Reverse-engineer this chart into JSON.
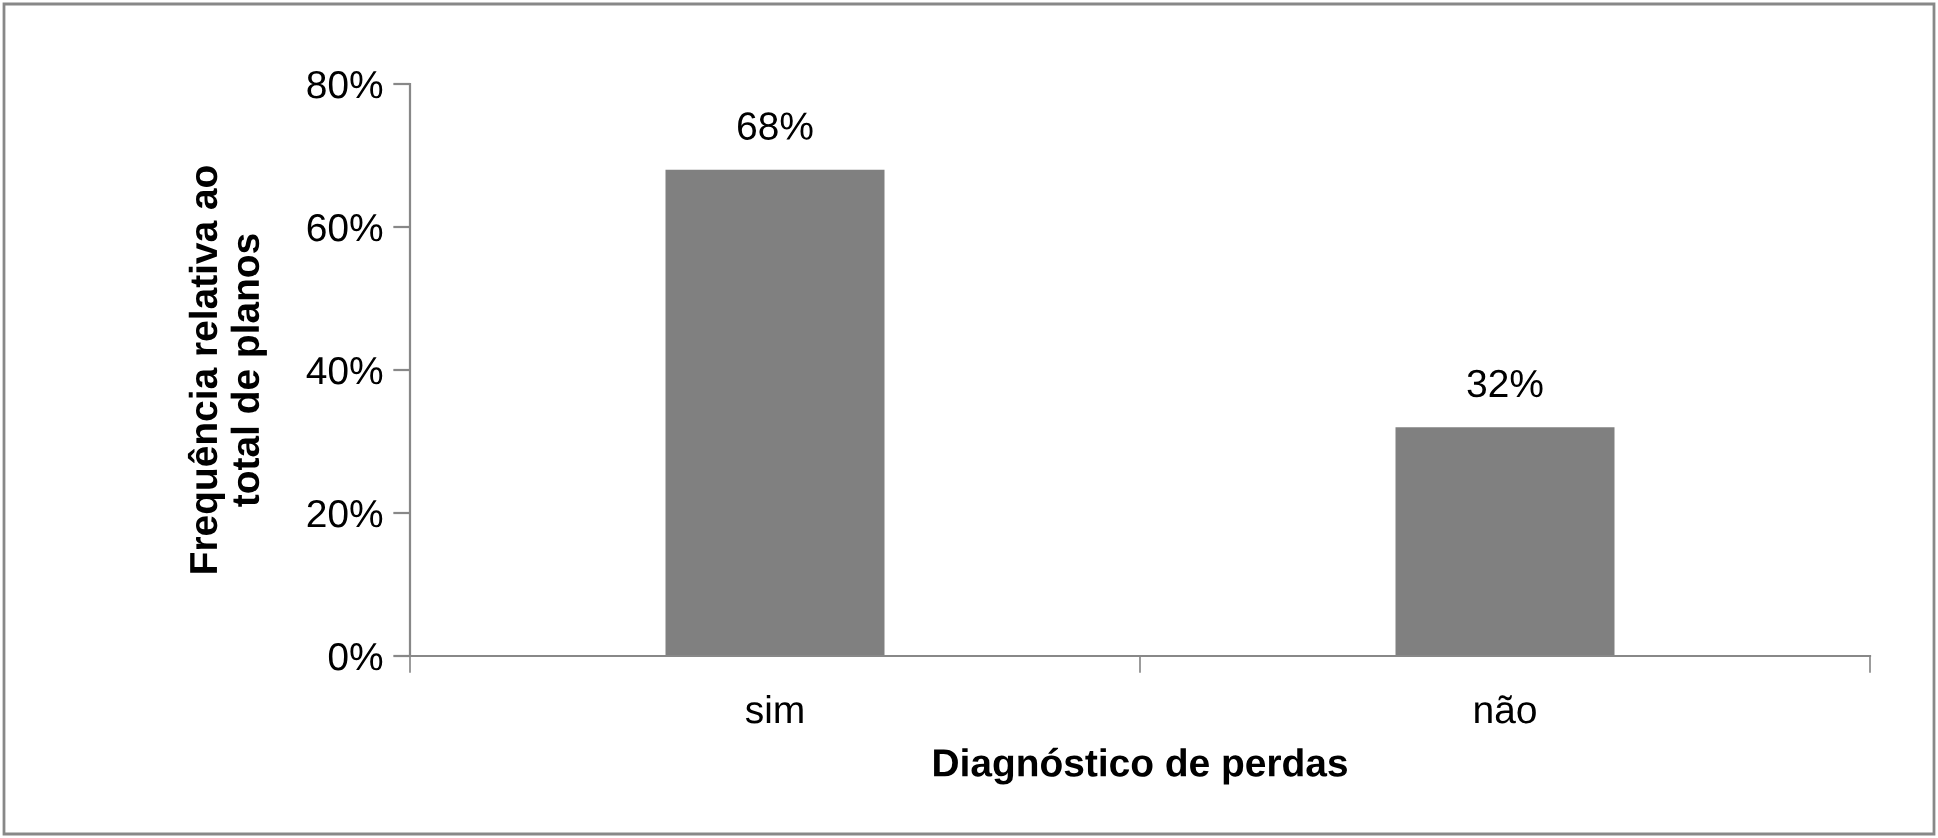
{
  "chart_data": {
    "type": "bar",
    "categories": [
      "sim",
      "não"
    ],
    "values": [
      68,
      32
    ],
    "color": "#808080",
    "value_labels": [
      "68%",
      "32%"
    ],
    "ylim": [
      0,
      80
    ],
    "yticks": [
      {
        "value": 0,
        "label": "0%"
      },
      {
        "value": 20,
        "label": "20%"
      },
      {
        "value": 40,
        "label": "40%"
      },
      {
        "value": 60,
        "label": "60%"
      },
      {
        "value": 80,
        "label": "80%"
      }
    ],
    "xlabel": "Diagnóstico de perdas",
    "ylabel": "Frequência relativa ao\ntotal de planos",
    "grid": false,
    "legend": false
  }
}
